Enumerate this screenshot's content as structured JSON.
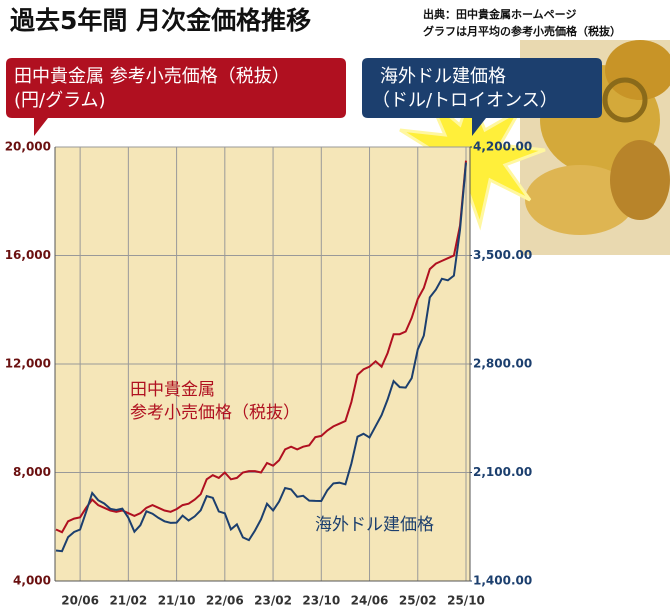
{
  "chart_data": {
    "type": "line",
    "title": "過去5年間 月次金価格推移",
    "source": [
      "出典：田中貴金属ホームページ",
      "グラフは月平均の参考小売価格（税抜）"
    ],
    "categories": [
      null,
      null,
      null,
      null,
      "20/06",
      null,
      null,
      null,
      null,
      null,
      null,
      null,
      "21/02",
      null,
      null,
      null,
      null,
      null,
      null,
      null,
      "21/10",
      null,
      null,
      null,
      null,
      null,
      null,
      null,
      "22/06",
      null,
      null,
      null,
      null,
      null,
      null,
      null,
      "23/02",
      null,
      null,
      null,
      null,
      null,
      null,
      null,
      "23/10",
      null,
      null,
      null,
      null,
      null,
      null,
      null,
      "24/06",
      null,
      null,
      null,
      null,
      null,
      null,
      null,
      "25/02",
      null,
      null,
      null,
      null,
      null,
      null,
      null,
      "25/10"
    ],
    "series": [
      {
        "name": "田中貴金属 参考小売価格（税抜）",
        "unit": "(円/グラム)",
        "color": "#b01020",
        "annotation": [
          "田中貴金属",
          "参考小売価格（税抜）"
        ],
        "values": [
          5900,
          5800,
          6200,
          6300,
          6350,
          6700,
          7000,
          6800,
          6700,
          6600,
          6550,
          6600,
          6500,
          6400,
          6500,
          6700,
          6800,
          6700,
          6600,
          6550,
          6650,
          6800,
          6850,
          7000,
          7200,
          7750,
          7900,
          7800,
          8000,
          7750,
          7800,
          8000,
          8050,
          8050,
          8000,
          8350,
          8250,
          8450,
          8850,
          8950,
          8850,
          8950,
          9000,
          9300,
          9350,
          9550,
          9700,
          9800,
          9900,
          10600,
          11600,
          11800,
          11900,
          12100,
          11900,
          12400,
          13100,
          13100,
          13200,
          13700,
          14400,
          14800,
          15500,
          15700,
          15800,
          15900,
          16000,
          17100,
          19500
        ]
      },
      {
        "name": "海外ドル建価格",
        "unit": "（ドル/トロイオンス）",
        "color": "#1c3f6e",
        "axis": "y2",
        "annotation": [
          "海外ドル建価格"
        ],
        "values": [
          1597,
          1592,
          1683,
          1716,
          1732,
          1846,
          1968,
          1921,
          1900,
          1866,
          1858,
          1867,
          1808,
          1718,
          1760,
          1850,
          1834,
          1807,
          1785,
          1775,
          1777,
          1822,
          1790,
          1817,
          1856,
          1948,
          1937,
          1849,
          1837,
          1733,
          1765,
          1681,
          1664,
          1726,
          1798,
          1898,
          1855,
          1913,
          2000,
          1991,
          1943,
          1950,
          1919,
          1917,
          1916,
          1985,
          2030,
          2034,
          2024,
          2158,
          2331,
          2350,
          2326,
          2399,
          2470,
          2571,
          2690,
          2651,
          2648,
          2709,
          2895,
          2983,
          3230,
          3280,
          3350,
          3340,
          3370,
          3665,
          4100
        ]
      }
    ],
    "ylim": [
      4000,
      20000
    ],
    "yticks": [
      {
        "value": 4000,
        "label": "4,000"
      },
      {
        "value": 8000,
        "label": "8,000"
      },
      {
        "value": 12000,
        "label": "12,000"
      },
      {
        "value": 16000,
        "label": "16,000"
      },
      {
        "value": 20000,
        "label": "20,000"
      }
    ],
    "y2lim": [
      1400,
      4200
    ],
    "y2ticks": [
      {
        "value": 1400,
        "label": "1,400.00"
      },
      {
        "value": 2100,
        "label": "2,100.00"
      },
      {
        "value": 2800,
        "label": "2,800.00"
      },
      {
        "value": 3500,
        "label": "3,500.00"
      },
      {
        "value": 4200,
        "label": "4,200.00"
      }
    ],
    "grid": true
  }
}
